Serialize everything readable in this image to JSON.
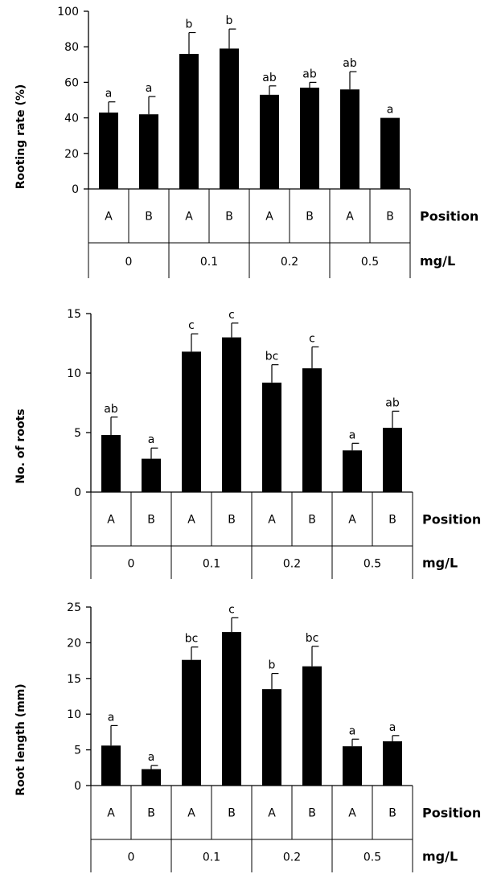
{
  "chart_data": [
    {
      "type": "bar",
      "ylabel": "Rooting rate (%)",
      "ylim": [
        0,
        100
      ],
      "yticks": [
        0,
        20,
        40,
        60,
        80,
        100
      ],
      "categories": [
        "A",
        "B",
        "A",
        "B",
        "A",
        "B",
        "A",
        "B"
      ],
      "groups": [
        "0",
        "0.1",
        "0.2",
        "0.5"
      ],
      "row_labels": {
        "position": "Position",
        "unit": "mg/L"
      },
      "values": [
        43,
        42,
        76,
        79,
        53,
        57,
        56,
        40
      ],
      "errors": [
        6,
        10,
        12,
        11,
        5,
        3,
        10,
        0
      ],
      "letters": [
        "a",
        "a",
        "b",
        "b",
        "ab",
        "ab",
        "ab",
        "a"
      ]
    },
    {
      "type": "bar",
      "ylabel": "No. of roots",
      "ylim": [
        0,
        15
      ],
      "yticks": [
        0,
        5,
        10,
        15
      ],
      "categories": [
        "A",
        "B",
        "A",
        "B",
        "A",
        "B",
        "A",
        "B"
      ],
      "groups": [
        "0",
        "0.1",
        "0.2",
        "0.5"
      ],
      "row_labels": {
        "position": "Position",
        "unit": "mg/L"
      },
      "values": [
        4.8,
        2.8,
        11.8,
        13.0,
        9.2,
        10.4,
        3.5,
        5.4
      ],
      "errors": [
        1.5,
        0.9,
        1.5,
        1.2,
        1.5,
        1.8,
        0.6,
        1.4
      ],
      "letters": [
        "ab",
        "a",
        "c",
        "c",
        "bc",
        "c",
        "a",
        "ab"
      ]
    },
    {
      "type": "bar",
      "ylabel": "Root length (mm)",
      "ylim": [
        0,
        25
      ],
      "yticks": [
        0,
        5,
        10,
        15,
        20,
        25
      ],
      "categories": [
        "A",
        "B",
        "A",
        "B",
        "A",
        "B",
        "A",
        "B"
      ],
      "groups": [
        "0",
        "0.1",
        "0.2",
        "0.5"
      ],
      "row_labels": {
        "position": "Position",
        "unit": "mg/L"
      },
      "values": [
        5.6,
        2.3,
        17.6,
        21.5,
        13.5,
        16.7,
        5.5,
        6.2
      ],
      "errors": [
        2.8,
        0.5,
        1.8,
        2.0,
        2.2,
        2.8,
        1.0,
        0.8
      ],
      "letters": [
        "a",
        "a",
        "bc",
        "c",
        "b",
        "bc",
        "a",
        "a"
      ]
    }
  ]
}
